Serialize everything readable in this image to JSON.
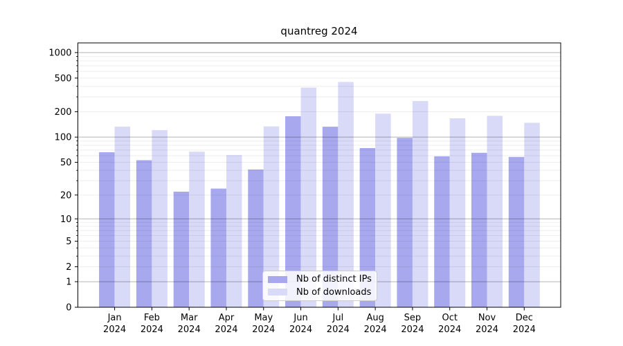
{
  "chart_data": {
    "type": "bar",
    "title": "quantreg 2024",
    "categories": [
      "Jan 2024",
      "Feb 2024",
      "Mar 2024",
      "Apr 2024",
      "May 2024",
      "Jun 2024",
      "Jul 2024",
      "Aug 2024",
      "Sep 2024",
      "Oct 2024",
      "Nov 2024",
      "Dec 2024"
    ],
    "series": [
      {
        "name": "Nb of distinct IPs",
        "color": "#a8a8ee",
        "values": [
          66,
          53,
          22,
          24,
          41,
          177,
          133,
          74,
          98,
          59,
          65,
          58
        ]
      },
      {
        "name": "Nb of downloads",
        "color": "#d9d9f8",
        "values": [
          133,
          121,
          67,
          61,
          134,
          386,
          450,
          190,
          268,
          167,
          179,
          148
        ]
      }
    ],
    "xlabel": "",
    "ylabel": "",
    "yscale": "log1p",
    "ylim": [
      0,
      1300
    ],
    "ytick_values": [
      0,
      1,
      2,
      5,
      10,
      20,
      50,
      100,
      200,
      500,
      1000
    ],
    "ytick_labels": [
      "0",
      "1",
      "2",
      "5",
      "10",
      "20",
      "50",
      "100",
      "200",
      "500",
      "1000"
    ],
    "grid": "on",
    "grid_over_bars": true,
    "legend_position": "lower center"
  },
  "colors": {
    "background": "#ffffff",
    "axis": "#000000",
    "tick_label": "#000000",
    "major_grid": "rgba(0,0,0,0.30)",
    "minor_grid": "rgba(0,0,0,0.07)",
    "legend_border": "#cccccc"
  }
}
